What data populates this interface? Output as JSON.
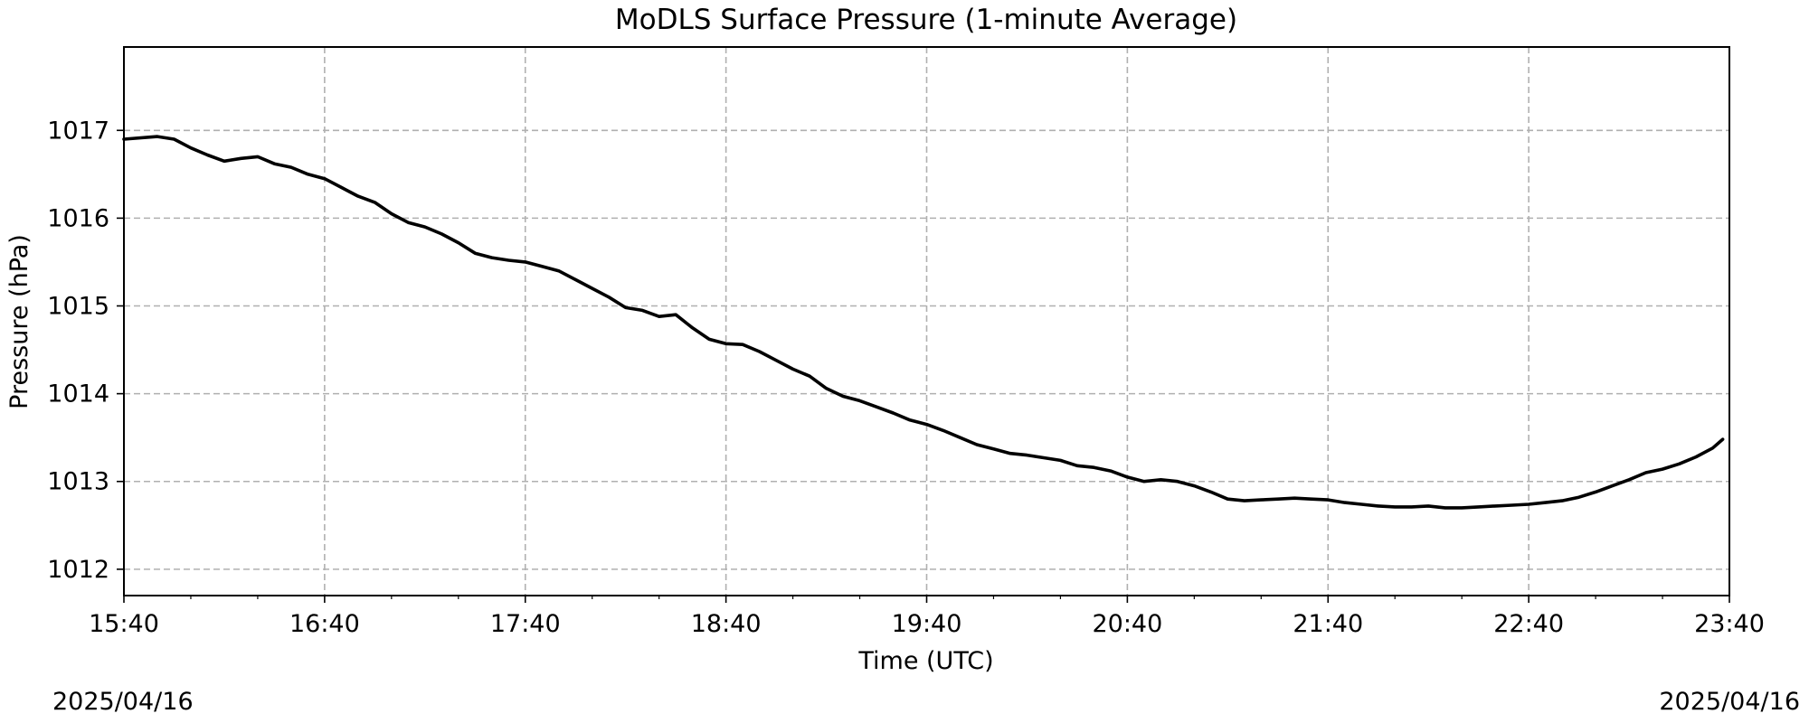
{
  "chart_data": {
    "type": "line",
    "title": "MoDLS Surface Pressure (1-minute Average)",
    "xlabel": "Time (UTC)",
    "ylabel": "Pressure (hPa)",
    "x_start_label": "2025/04/16",
    "x_end_label": "2025/04/16",
    "x_ticks": [
      "15:40",
      "16:40",
      "17:40",
      "18:40",
      "19:40",
      "20:40",
      "21:40",
      "22:40",
      "23:40"
    ],
    "y_ticks": [
      "1012",
      "1013",
      "1014",
      "1015",
      "1016",
      "1017"
    ],
    "ylim": [
      1011.7,
      1017.95
    ],
    "xlim": [
      "15:40",
      "23:40"
    ],
    "grid": true,
    "grid_style": "dashed",
    "line_color": "#000000",
    "series": [
      {
        "x": [
          "15:40",
          "15:50",
          "15:55",
          "16:00",
          "16:05",
          "16:10",
          "16:15",
          "16:20",
          "16:25",
          "16:30",
          "16:35",
          "16:40",
          "16:45",
          "16:50",
          "16:55",
          "17:00",
          "17:05",
          "17:10",
          "17:15",
          "17:20",
          "17:25",
          "17:30",
          "17:35",
          "17:40",
          "17:45",
          "17:50",
          "17:55",
          "18:00",
          "18:05",
          "18:10",
          "18:15",
          "18:20",
          "18:25",
          "18:30",
          "18:35",
          "18:40",
          "18:45",
          "18:50",
          "18:55",
          "19:00",
          "19:05",
          "19:10",
          "19:15",
          "19:20",
          "19:25",
          "19:30",
          "19:35",
          "19:40",
          "19:45",
          "19:50",
          "19:55",
          "20:00",
          "20:05",
          "20:10",
          "20:15",
          "20:20",
          "20:25",
          "20:30",
          "20:35",
          "20:40",
          "20:45",
          "20:50",
          "20:55",
          "21:00",
          "21:05",
          "21:10",
          "21:15",
          "21:20",
          "21:25",
          "21:30",
          "21:35",
          "21:40",
          "21:45",
          "21:50",
          "21:55",
          "22:00",
          "22:05",
          "22:10",
          "22:15",
          "22:20",
          "22:25",
          "22:30",
          "22:35",
          "22:40",
          "22:45",
          "22:50",
          "22:55",
          "23:00",
          "23:05",
          "23:10",
          "23:15",
          "23:20",
          "23:25",
          "23:30",
          "23:35",
          "23:38"
        ],
        "values": [
          1016.9,
          1016.93,
          1016.9,
          1016.8,
          1016.72,
          1016.65,
          1016.68,
          1016.7,
          1016.62,
          1016.58,
          1016.5,
          1016.45,
          1016.35,
          1016.25,
          1016.18,
          1016.05,
          1015.95,
          1015.9,
          1015.82,
          1015.72,
          1015.6,
          1015.55,
          1015.52,
          1015.5,
          1015.45,
          1015.4,
          1015.3,
          1015.2,
          1015.1,
          1014.98,
          1014.95,
          1014.88,
          1014.9,
          1014.75,
          1014.62,
          1014.57,
          1014.56,
          1014.48,
          1014.38,
          1014.28,
          1014.2,
          1014.06,
          1013.97,
          1013.92,
          1013.85,
          1013.78,
          1013.7,
          1013.65,
          1013.58,
          1013.5,
          1013.42,
          1013.37,
          1013.32,
          1013.3,
          1013.27,
          1013.24,
          1013.18,
          1013.16,
          1013.12,
          1013.05,
          1013.0,
          1013.02,
          1013.0,
          1012.95,
          1012.88,
          1012.8,
          1012.78,
          1012.79,
          1012.8,
          1012.81,
          1012.8,
          1012.79,
          1012.76,
          1012.74,
          1012.72,
          1012.71,
          1012.71,
          1012.72,
          1012.7,
          1012.7,
          1012.71,
          1012.72,
          1012.73,
          1012.74,
          1012.76,
          1012.78,
          1012.82,
          1012.88,
          1012.95,
          1013.02,
          1013.1,
          1013.14,
          1013.2,
          1013.28,
          1013.38,
          1013.48
        ]
      }
    ]
  }
}
